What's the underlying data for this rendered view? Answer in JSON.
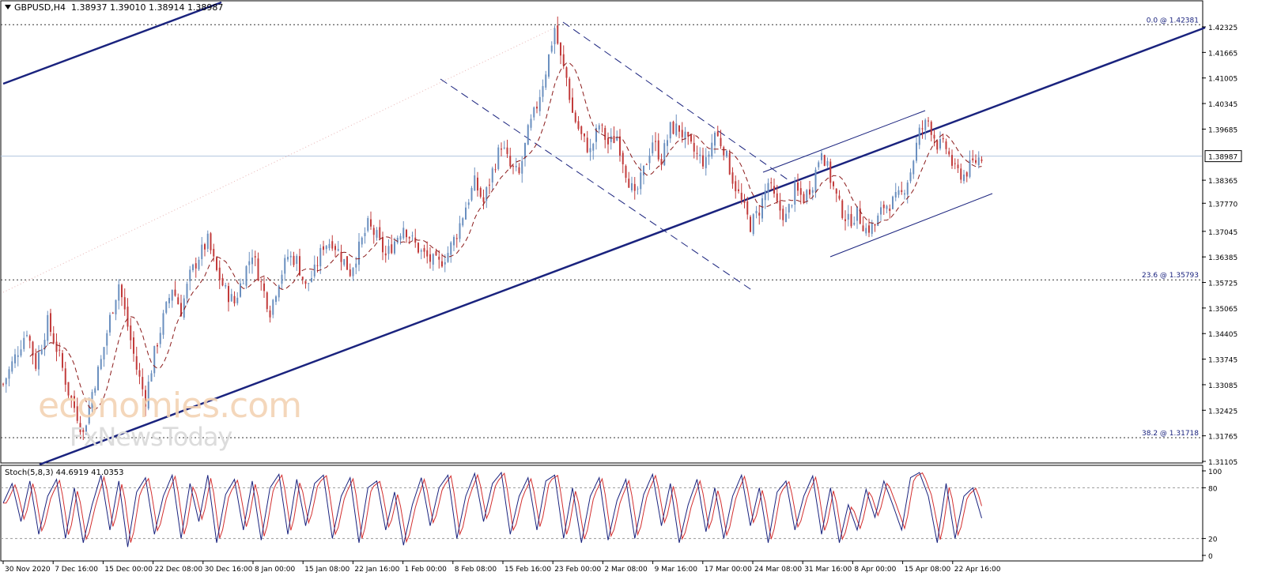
{
  "header": {
    "symbol": "GBPUSD,H4",
    "ohlc": "1.38937 1.39010 1.38914 1.38987"
  },
  "watermark": {
    "line1": "economies.com",
    "line2": "FxNewsToday"
  },
  "stochastic": {
    "label": "Stoch(5,8,3) 44.6919 41.0353",
    "axis_labels": [
      "100",
      "80",
      "20",
      "0"
    ]
  },
  "fibonacci": [
    {
      "label": "0.0 @ 1.42381",
      "level": 1.42381
    },
    {
      "label": "23.6 @ 1.35793",
      "level": 1.35793
    },
    {
      "label": "38.2 @ 1.31718",
      "level": 1.31718
    }
  ],
  "colors": {
    "bull_candle": "#6a8fbf",
    "bear_candle": "#c23b3b",
    "trendline": "#1a237e",
    "moving_average": "#8b1a1a",
    "stoch_main": "#1a237e",
    "stoch_signal": "#d32f2f"
  },
  "chart_data": {
    "type": "candlestick",
    "price_ylim": [
      1.31105,
      1.42325
    ],
    "current_price": "1.38987",
    "y_ticks": [
      "1.42325",
      "1.41665",
      "1.41005",
      "1.40345",
      "1.39685",
      "1.38987",
      "1.38365",
      "1.37770",
      "1.37045",
      "1.36385",
      "1.35725",
      "1.35065",
      "1.34405",
      "1.33745",
      "1.33085",
      "1.32425",
      "1.31765",
      "1.31105"
    ],
    "x_ticks": [
      "30 Nov 2020",
      "7 Dec 16:00",
      "15 Dec 00:00",
      "22 Dec 08:00",
      "30 Dec 16:00",
      "8 Jan 00:00",
      "15 Jan 08:00",
      "22 Jan 16:00",
      "1 Feb 00:00",
      "8 Feb 08:00",
      "15 Feb 16:00",
      "23 Feb 00:00",
      "2 Mar 08:00",
      "9 Mar 16:00",
      "17 Mar 00:00",
      "24 Mar 08:00",
      "31 Mar 16:00",
      "8 Apr 00:00",
      "15 Apr 08:00",
      "22 Apr 16:00"
    ],
    "close_path": [
      [
        0,
        1.331
      ],
      [
        4,
        1.338
      ],
      [
        8,
        1.345
      ],
      [
        11,
        1.336
      ],
      [
        15,
        1.347
      ],
      [
        19,
        1.338
      ],
      [
        22,
        1.329
      ],
      [
        25,
        1.323
      ],
      [
        27,
        1.318
      ],
      [
        30,
        1.329
      ],
      [
        33,
        1.337
      ],
      [
        36,
        1.348
      ],
      [
        39,
        1.357
      ],
      [
        42,
        1.346
      ],
      [
        45,
        1.335
      ],
      [
        48,
        1.327
      ],
      [
        51,
        1.339
      ],
      [
        54,
        1.348
      ],
      [
        57,
        1.356
      ],
      [
        60,
        1.35
      ],
      [
        63,
        1.359
      ],
      [
        66,
        1.364
      ],
      [
        69,
        1.368
      ],
      [
        72,
        1.36
      ],
      [
        75,
        1.355
      ],
      [
        78,
        1.352
      ],
      [
        81,
        1.359
      ],
      [
        84,
        1.365
      ],
      [
        87,
        1.357
      ],
      [
        90,
        1.35
      ],
      [
        93,
        1.358
      ],
      [
        96,
        1.364
      ],
      [
        99,
        1.363
      ],
      [
        102,
        1.356
      ],
      [
        105,
        1.36
      ],
      [
        108,
        1.367
      ],
      [
        111,
        1.368
      ],
      [
        114,
        1.364
      ],
      [
        117,
        1.36
      ],
      [
        120,
        1.366
      ],
      [
        123,
        1.372
      ],
      [
        126,
        1.369
      ],
      [
        129,
        1.364
      ],
      [
        132,
        1.368
      ],
      [
        135,
        1.372
      ],
      [
        138,
        1.368
      ],
      [
        141,
        1.365
      ],
      [
        144,
        1.363
      ],
      [
        147,
        1.362
      ],
      [
        150,
        1.365
      ],
      [
        153,
        1.37
      ],
      [
        156,
        1.377
      ],
      [
        159,
        1.383
      ],
      [
        162,
        1.378
      ],
      [
        165,
        1.386
      ],
      [
        168,
        1.393
      ],
      [
        171,
        1.387
      ],
      [
        174,
        1.385
      ],
      [
        177,
        1.396
      ],
      [
        180,
        1.403
      ],
      [
        183,
        1.412
      ],
      [
        186,
        1.423
      ],
      [
        188,
        1.415
      ],
      [
        190,
        1.41
      ],
      [
        192,
        1.401
      ],
      [
        195,
        1.395
      ],
      [
        198,
        1.391
      ],
      [
        201,
        1.398
      ],
      [
        204,
        1.393
      ],
      [
        207,
        1.395
      ],
      [
        210,
        1.386
      ],
      [
        213,
        1.379
      ],
      [
        216,
        1.386
      ],
      [
        219,
        1.394
      ],
      [
        222,
        1.389
      ],
      [
        225,
        1.397
      ],
      [
        228,
        1.397
      ],
      [
        231,
        1.393
      ],
      [
        234,
        1.39
      ],
      [
        237,
        1.388
      ],
      [
        240,
        1.396
      ],
      [
        243,
        1.392
      ],
      [
        246,
        1.384
      ],
      [
        249,
        1.378
      ],
      [
        252,
        1.372
      ],
      [
        255,
        1.376
      ],
      [
        258,
        1.383
      ],
      [
        261,
        1.377
      ],
      [
        264,
        1.374
      ],
      [
        267,
        1.381
      ],
      [
        270,
        1.379
      ],
      [
        273,
        1.383
      ],
      [
        276,
        1.392
      ],
      [
        279,
        1.384
      ],
      [
        282,
        1.377
      ],
      [
        285,
        1.373
      ],
      [
        288,
        1.375
      ],
      [
        291,
        1.371
      ],
      [
        294,
        1.372
      ],
      [
        297,
        1.377
      ],
      [
        300,
        1.378
      ],
      [
        303,
        1.38
      ],
      [
        306,
        1.386
      ],
      [
        309,
        1.396
      ],
      [
        312,
        1.399
      ],
      [
        315,
        1.393
      ],
      [
        318,
        1.392
      ],
      [
        321,
        1.386
      ],
      [
        324,
        1.385
      ],
      [
        327,
        1.388
      ],
      [
        330,
        1.39
      ]
    ],
    "stoch_path": [
      [
        0,
        62
      ],
      [
        3,
        85
      ],
      [
        6,
        40
      ],
      [
        9,
        88
      ],
      [
        12,
        25
      ],
      [
        15,
        70
      ],
      [
        18,
        90
      ],
      [
        21,
        20
      ],
      [
        24,
        80
      ],
      [
        27,
        15
      ],
      [
        30,
        60
      ],
      [
        33,
        95
      ],
      [
        36,
        30
      ],
      [
        39,
        88
      ],
      [
        42,
        10
      ],
      [
        45,
        75
      ],
      [
        48,
        92
      ],
      [
        51,
        25
      ],
      [
        54,
        70
      ],
      [
        57,
        95
      ],
      [
        60,
        20
      ],
      [
        63,
        85
      ],
      [
        66,
        40
      ],
      [
        69,
        95
      ],
      [
        72,
        15
      ],
      [
        75,
        72
      ],
      [
        78,
        90
      ],
      [
        81,
        30
      ],
      [
        84,
        88
      ],
      [
        87,
        18
      ],
      [
        90,
        80
      ],
      [
        93,
        96
      ],
      [
        96,
        25
      ],
      [
        99,
        90
      ],
      [
        102,
        35
      ],
      [
        105,
        85
      ],
      [
        108,
        95
      ],
      [
        111,
        20
      ],
      [
        114,
        70
      ],
      [
        117,
        92
      ],
      [
        120,
        15
      ],
      [
        123,
        80
      ],
      [
        126,
        88
      ],
      [
        129,
        30
      ],
      [
        132,
        75
      ],
      [
        135,
        12
      ],
      [
        138,
        60
      ],
      [
        141,
        92
      ],
      [
        144,
        35
      ],
      [
        147,
        80
      ],
      [
        150,
        95
      ],
      [
        153,
        20
      ],
      [
        156,
        70
      ],
      [
        159,
        97
      ],
      [
        162,
        40
      ],
      [
        165,
        85
      ],
      [
        168,
        98
      ],
      [
        171,
        25
      ],
      [
        174,
        70
      ],
      [
        177,
        92
      ],
      [
        180,
        30
      ],
      [
        183,
        88
      ],
      [
        186,
        95
      ],
      [
        189,
        20
      ],
      [
        192,
        80
      ],
      [
        195,
        15
      ],
      [
        198,
        70
      ],
      [
        201,
        92
      ],
      [
        204,
        18
      ],
      [
        207,
        65
      ],
      [
        210,
        90
      ],
      [
        213,
        20
      ],
      [
        216,
        72
      ],
      [
        219,
        96
      ],
      [
        222,
        35
      ],
      [
        225,
        85
      ],
      [
        228,
        15
      ],
      [
        231,
        60
      ],
      [
        234,
        90
      ],
      [
        237,
        28
      ],
      [
        240,
        80
      ],
      [
        243,
        20
      ],
      [
        246,
        70
      ],
      [
        249,
        95
      ],
      [
        252,
        35
      ],
      [
        255,
        80
      ],
      [
        258,
        15
      ],
      [
        261,
        75
      ],
      [
        264,
        88
      ],
      [
        267,
        30
      ],
      [
        270,
        70
      ],
      [
        273,
        94
      ],
      [
        276,
        25
      ],
      [
        279,
        80
      ],
      [
        282,
        15
      ],
      [
        285,
        60
      ],
      [
        288,
        30
      ],
      [
        291,
        78
      ],
      [
        294,
        45
      ],
      [
        297,
        88
      ],
      [
        300,
        60
      ],
      [
        303,
        30
      ],
      [
        306,
        92
      ],
      [
        309,
        98
      ],
      [
        312,
        70
      ],
      [
        315,
        15
      ],
      [
        318,
        85
      ],
      [
        321,
        20
      ],
      [
        324,
        70
      ],
      [
        327,
        80
      ],
      [
        330,
        44
      ]
    ]
  }
}
